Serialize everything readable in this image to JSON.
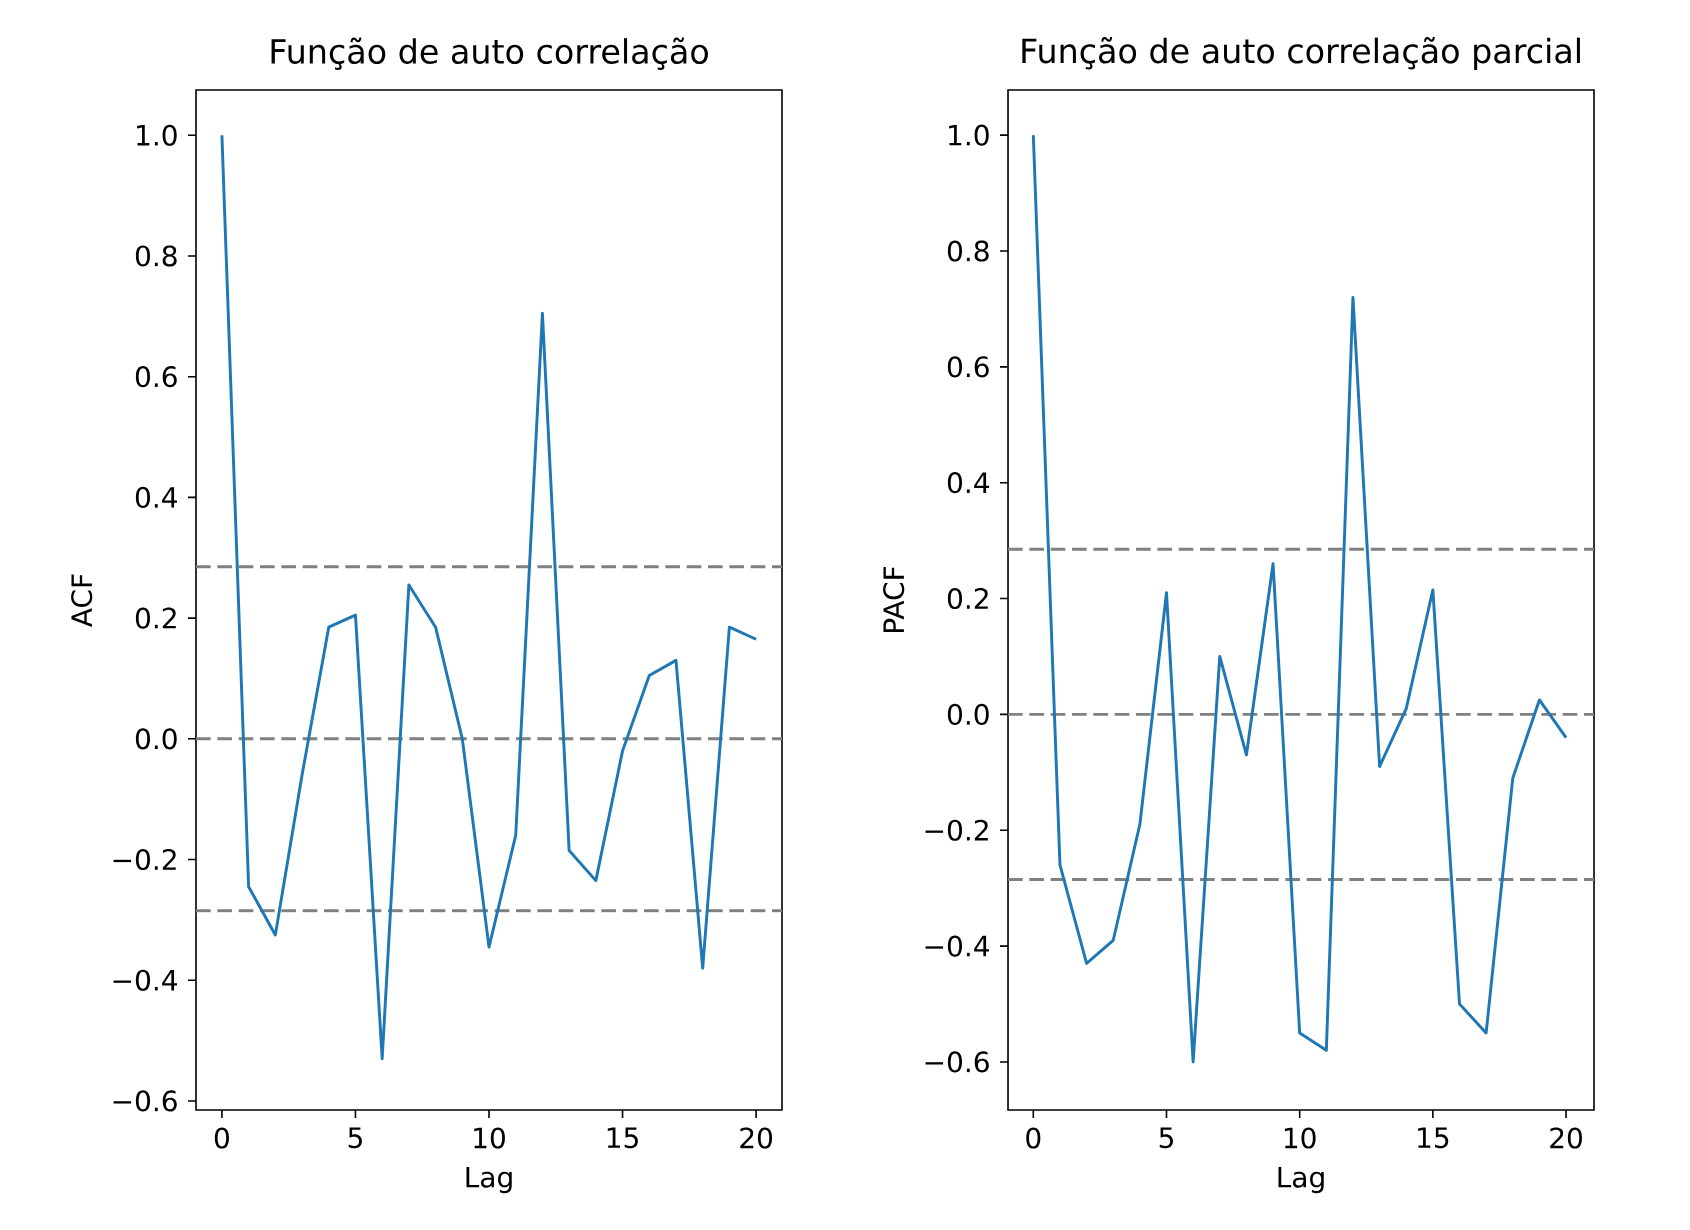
{
  "chart_data": [
    {
      "type": "line",
      "title": "Função de auto correlação",
      "xlabel": "Lag",
      "ylabel": "ACF",
      "grid": false,
      "x": [
        0,
        1,
        2,
        3,
        4,
        5,
        6,
        7,
        8,
        9,
        10,
        11,
        12,
        13,
        14,
        15,
        16,
        17,
        18,
        19,
        20
      ],
      "series": [
        {
          "color": "#1f77b4",
          "values": [
            1.0,
            -0.245,
            -0.325,
            -0.06,
            0.185,
            0.205,
            -0.53,
            0.255,
            0.185,
            0.0,
            -0.345,
            -0.16,
            0.705,
            -0.185,
            -0.235,
            -0.02,
            0.105,
            0.13,
            -0.38,
            0.185,
            0.165
          ]
        }
      ],
      "xlim": [
        -0.97,
        20.97
      ],
      "ylim": [
        -0.615,
        1.075
      ],
      "xticks": [
        0,
        5,
        10,
        15,
        20
      ],
      "yticks": [
        {
          "value": -0.6,
          "label": "−0.6"
        },
        {
          "value": -0.4,
          "label": "−0.4"
        },
        {
          "value": -0.2,
          "label": "−0.2"
        },
        {
          "value": 0,
          "label": "0.0"
        },
        {
          "value": 0.2,
          "label": "0.2"
        },
        {
          "value": 0.4,
          "label": "0.4"
        },
        {
          "value": 0.6,
          "label": "0.6"
        },
        {
          "value": 0.8,
          "label": "0.8"
        },
        {
          "value": 1.0,
          "label": "1.0"
        }
      ],
      "ref_lines": [
        {
          "axis": "y",
          "value": 0.285,
          "color": "#808080",
          "line_style": "dashed"
        },
        {
          "axis": "y",
          "value": 0,
          "color": "#808080",
          "line_style": "dashed"
        },
        {
          "axis": "y",
          "value": -0.285,
          "color": "#808080",
          "line_style": "dashed"
        }
      ]
    },
    {
      "type": "line",
      "title": "Função de auto correlação parcial",
      "xlabel": "Lag",
      "ylabel": "PACF",
      "grid": false,
      "x": [
        0,
        1,
        2,
        3,
        4,
        5,
        6,
        7,
        8,
        9,
        10,
        11,
        12,
        13,
        14,
        15,
        16,
        17,
        18,
        19,
        20
      ],
      "series": [
        {
          "color": "#1f77b4",
          "values": [
            1.0,
            -0.26,
            -0.43,
            -0.39,
            -0.19,
            0.21,
            -0.6,
            0.1,
            -0.07,
            0.26,
            -0.55,
            -0.58,
            0.72,
            -0.09,
            0.01,
            0.215,
            -0.5,
            -0.55,
            -0.11,
            0.025,
            -0.04
          ]
        }
      ],
      "xlim": [
        -0.95,
        21.05
      ],
      "ylim": [
        -0.683,
        1.078
      ],
      "xticks": [
        0,
        5,
        10,
        15,
        20
      ],
      "yticks": [
        {
          "value": -0.6,
          "label": "−0.6"
        },
        {
          "value": -0.4,
          "label": "−0.4"
        },
        {
          "value": -0.2,
          "label": "−0.2"
        },
        {
          "value": 0,
          "label": "0.0"
        },
        {
          "value": 0.2,
          "label": "0.2"
        },
        {
          "value": 0.4,
          "label": "0.4"
        },
        {
          "value": 0.6,
          "label": "0.6"
        },
        {
          "value": 0.8,
          "label": "0.8"
        },
        {
          "value": 1.0,
          "label": "1.0"
        }
      ],
      "ref_lines": [
        {
          "axis": "y",
          "value": 0.285,
          "color": "#808080",
          "line_style": "dashed"
        },
        {
          "axis": "y",
          "value": 0,
          "color": "#808080",
          "line_style": "dashed"
        },
        {
          "axis": "y",
          "value": -0.285,
          "color": "#808080",
          "line_style": "dashed"
        }
      ]
    }
  ]
}
